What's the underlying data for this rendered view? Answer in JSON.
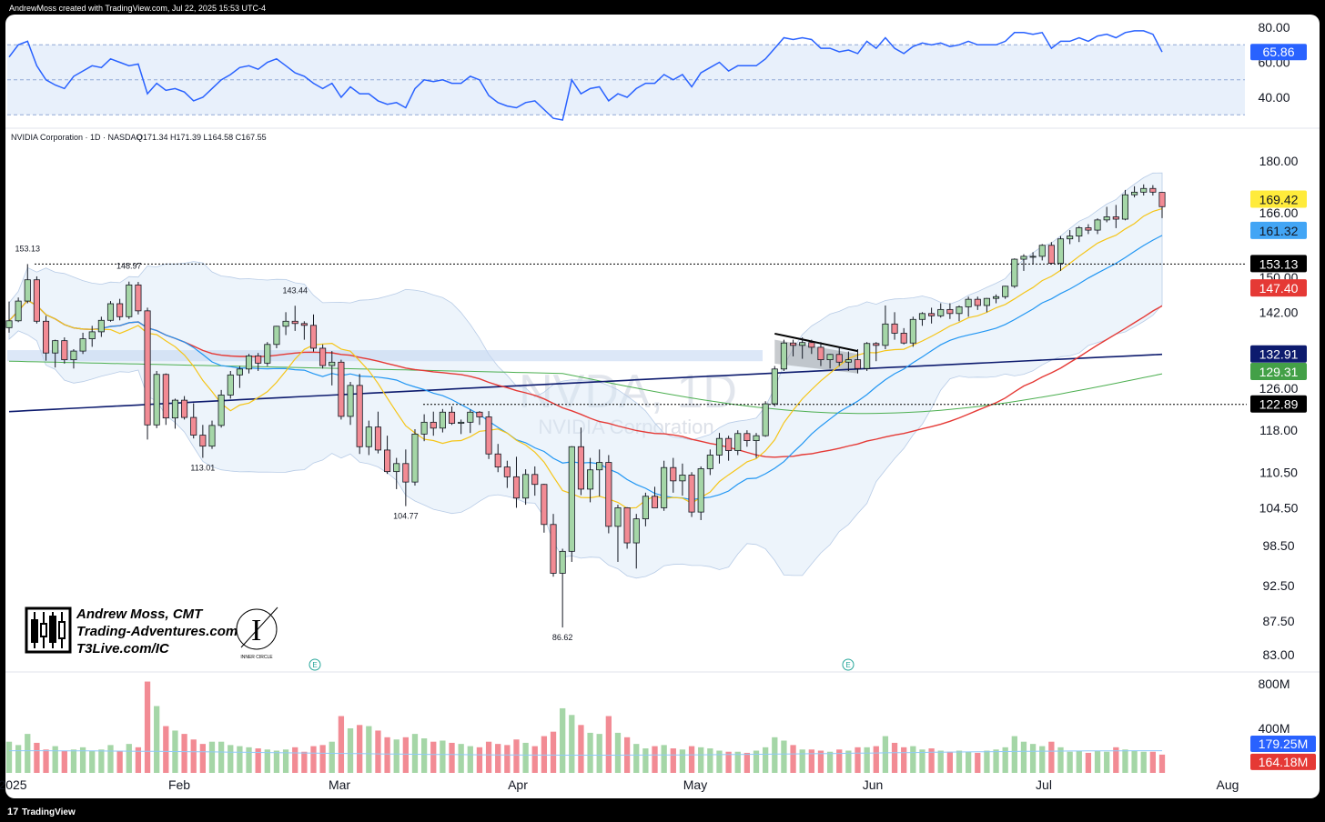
{
  "header": {
    "credit": "AndrewMoss created with TradingView.com, Jul 22, 2025 15:53 UTC-4",
    "symbol_line": "NVIDIA Corporation · 1D · NASDAQ",
    "ohlc": {
      "O": "171.34",
      "H": "171.39",
      "L": "164.58",
      "C": "167.55"
    },
    "ohlc_text": "O171.34  H171.39  L164.58  C167.55"
  },
  "watermark": {
    "ticker": "NVDA, 1D",
    "name": "NVIDIA Corporation"
  },
  "branding": {
    "line1": "Andrew Moss, CMT",
    "line2": "Trading-Adventures.com",
    "line3": "T3Live.com/IC",
    "seal_text": "INNER CIRCLE",
    "footer": "TradingView"
  },
  "colors": {
    "background": "#ffffff",
    "up": "#a5d6a7",
    "down": "#f28b94",
    "candle_outline": "#131722",
    "rsi": "#2962ff",
    "ma_fast": "#f5c518",
    "ma_20": "#2196f3",
    "ma_50": "#e53935",
    "ma_100": "#4caf50",
    "ma_200": "#0d1b6e",
    "bb_fill": "#d6e6f7"
  },
  "price_axis": [
    "180.00",
    "166.00",
    "150.00",
    "142.00",
    "126.00",
    "118.00",
    "110.50",
    "104.50",
    "98.50",
    "92.50",
    "87.50",
    "83.00"
  ],
  "rsi_axis": [
    "80.00",
    "60.00",
    "40.00"
  ],
  "volume_axis": [
    "800M",
    "400M"
  ],
  "months": [
    "2025",
    "Feb",
    "Mar",
    "Apr",
    "May",
    "Jun",
    "Jul",
    "Aug"
  ],
  "price_badges": [
    {
      "label": "169.42",
      "bg": "#ffeb3b",
      "fg": "#131722"
    },
    {
      "label": "161.32",
      "bg": "#42a5f5",
      "fg": "#131722"
    },
    {
      "label": "153.13",
      "bg": "#000000",
      "fg": "#ffffff"
    },
    {
      "label": "147.40",
      "bg": "#e53935",
      "fg": "#ffffff"
    },
    {
      "label": "132.91",
      "bg": "#0d1b6e",
      "fg": "#ffffff"
    },
    {
      "label": "129.31",
      "bg": "#43a047",
      "fg": "#ffffff"
    },
    {
      "label": "122.89",
      "bg": "#000000",
      "fg": "#ffffff"
    }
  ],
  "rsi_badge": {
    "label": "65.86",
    "bg": "#2962ff",
    "fg": "#ffffff"
  },
  "volume_badges": [
    {
      "label": "179.25M",
      "bg": "#2962ff",
      "fg": "#ffffff"
    },
    {
      "label": "164.18M",
      "bg": "#e53935",
      "fg": "#ffffff"
    }
  ],
  "price_annotations": [
    {
      "label": "153.13"
    },
    {
      "label": "148.97"
    },
    {
      "label": "143.44"
    },
    {
      "label": "113.01"
    },
    {
      "label": "104.77"
    },
    {
      "label": "86.62"
    }
  ],
  "chart_data": {
    "type": "candlestick",
    "ticker": "NVDA",
    "interval": "1D",
    "exchange": "NASDAQ",
    "start_date": "2025-01-02",
    "candles": [
      [
        138.6,
        144.4,
        137.5,
        140.1
      ],
      [
        140.1,
        145.3,
        139.8,
        144.5
      ],
      [
        144.5,
        153.13,
        144.0,
        149.4
      ],
      [
        149.4,
        150.2,
        139.5,
        140.0
      ],
      [
        140.0,
        141.2,
        131.6,
        133.2
      ],
      [
        133.2,
        136.0,
        130.2,
        135.8
      ],
      [
        135.8,
        136.5,
        131.0,
        131.8
      ],
      [
        131.8,
        134.0,
        130.0,
        133.6
      ],
      [
        133.6,
        137.5,
        133.0,
        136.2
      ],
      [
        136.2,
        139.0,
        134.5,
        137.7
      ],
      [
        137.7,
        141.0,
        136.6,
        140.2
      ],
      [
        140.2,
        144.5,
        139.9,
        143.9
      ],
      [
        143.9,
        145.0,
        140.2,
        141.0
      ],
      [
        141.0,
        148.97,
        140.5,
        148.2
      ],
      [
        148.2,
        148.9,
        141.5,
        142.3
      ],
      [
        142.3,
        143.0,
        116.3,
        119.0
      ],
      [
        119.0,
        129.5,
        118.4,
        128.8
      ],
      [
        128.8,
        129.0,
        119.0,
        120.3
      ],
      [
        120.3,
        124.0,
        118.3,
        123.7
      ],
      [
        123.7,
        124.5,
        120.0,
        120.4
      ],
      [
        120.4,
        123.1,
        116.5,
        117.1
      ],
      [
        117.1,
        119.0,
        113.01,
        115.1
      ],
      [
        115.1,
        119.8,
        114.6,
        118.9
      ],
      [
        118.9,
        125.7,
        118.5,
        124.7
      ],
      [
        124.7,
        129.5,
        124.0,
        128.7
      ],
      [
        128.7,
        130.5,
        126.1,
        129.9
      ],
      [
        129.9,
        133.0,
        129.0,
        132.6
      ],
      [
        132.6,
        133.2,
        129.5,
        131.1
      ],
      [
        131.1,
        135.5,
        130.5,
        135.0
      ],
      [
        135.0,
        139.0,
        134.2,
        138.9
      ],
      [
        138.9,
        142.0,
        137.0,
        140.0
      ],
      [
        140.0,
        143.44,
        137.9,
        139.5
      ],
      [
        139.5,
        140.0,
        136.0,
        139.1
      ],
      [
        139.1,
        141.5,
        133.5,
        134.2
      ],
      [
        134.2,
        135.0,
        130.0,
        130.6
      ],
      [
        130.6,
        133.6,
        126.6,
        131.3
      ],
      [
        131.3,
        131.8,
        120.0,
        120.6
      ],
      [
        120.6,
        127.3,
        119.0,
        126.6
      ],
      [
        126.6,
        128.9,
        113.7,
        115.0
      ],
      [
        115.0,
        119.8,
        113.5,
        118.6
      ],
      [
        118.6,
        121.5,
        113.8,
        114.4
      ],
      [
        114.4,
        117.0,
        110.2,
        110.6
      ],
      [
        110.6,
        113.0,
        107.6,
        112.0
      ],
      [
        112.0,
        114.5,
        104.77,
        108.8
      ],
      [
        108.8,
        118.2,
        108.2,
        117.3
      ],
      [
        117.3,
        121.0,
        116.0,
        119.5
      ],
      [
        119.5,
        121.5,
        117.0,
        118.4
      ],
      [
        118.4,
        122.0,
        117.6,
        121.4
      ],
      [
        121.4,
        122.5,
        119.0,
        119.3
      ],
      [
        119.3,
        120.0,
        117.3,
        119.5
      ],
      [
        119.5,
        121.9,
        117.5,
        121.4
      ],
      [
        121.4,
        121.6,
        119.0,
        120.5
      ],
      [
        120.5,
        121.6,
        112.8,
        113.7
      ],
      [
        113.7,
        115.5,
        110.5,
        111.4
      ],
      [
        111.4,
        112.5,
        107.8,
        109.7
      ],
      [
        109.7,
        113.2,
        104.5,
        106.1
      ],
      [
        106.1,
        111.0,
        105.0,
        110.1
      ],
      [
        110.1,
        111.5,
        106.5,
        108.4
      ],
      [
        108.4,
        108.5,
        100.5,
        101.8
      ],
      [
        101.8,
        103.5,
        93.8,
        94.3
      ],
      [
        94.3,
        98.0,
        86.62,
        97.6
      ],
      [
        97.6,
        115.1,
        96.0,
        115.0
      ],
      [
        115.0,
        118.5,
        106.6,
        107.6
      ],
      [
        107.6,
        113.0,
        105.4,
        110.9
      ],
      [
        110.9,
        114.5,
        106.4,
        112.2
      ],
      [
        112.2,
        113.5,
        100.4,
        101.5
      ],
      [
        101.5,
        105.0,
        96.0,
        104.5
      ],
      [
        104.5,
        104.6,
        98.0,
        98.9
      ],
      [
        98.9,
        103.5,
        95.0,
        102.7
      ],
      [
        102.7,
        107.0,
        101.5,
        106.4
      ],
      [
        106.4,
        108.0,
        104.5,
        104.5
      ],
      [
        104.5,
        112.5,
        104.0,
        111.3
      ],
      [
        111.3,
        113.0,
        107.0,
        109.0
      ],
      [
        109.0,
        112.0,
        106.5,
        110.0
      ],
      [
        110.0,
        110.5,
        103.0,
        103.8
      ],
      [
        103.8,
        111.5,
        102.5,
        111.1
      ],
      [
        111.1,
        114.5,
        110.0,
        113.5
      ],
      [
        113.5,
        117.5,
        112.0,
        116.5
      ],
      [
        116.5,
        117.0,
        112.5,
        114.3
      ],
      [
        114.3,
        118.0,
        113.5,
        117.4
      ],
      [
        117.4,
        118.0,
        115.0,
        116.1
      ],
      [
        116.1,
        117.5,
        113.0,
        117.0
      ],
      [
        117.0,
        123.5,
        116.8,
        123.0
      ],
      [
        123.0,
        130.5,
        122.5,
        129.9
      ],
      [
        129.9,
        136.0,
        129.5,
        135.3
      ],
      [
        135.3,
        136.0,
        132.5,
        134.8
      ],
      [
        134.8,
        136.5,
        132.0,
        135.4
      ],
      [
        135.4,
        136.0,
        133.0,
        134.4
      ],
      [
        134.4,
        135.5,
        130.5,
        131.8
      ],
      [
        131.8,
        133.0,
        130.0,
        132.9
      ],
      [
        132.9,
        134.5,
        130.5,
        131.3
      ],
      [
        131.3,
        133.5,
        129.5,
        131.8
      ],
      [
        131.8,
        134.0,
        129.0,
        130.0
      ],
      [
        130.0,
        135.5,
        129.5,
        135.2
      ],
      [
        135.2,
        135.5,
        131.5,
        134.8
      ],
      [
        134.8,
        143.5,
        134.0,
        139.4
      ],
      [
        139.4,
        142.0,
        136.0,
        137.4
      ],
      [
        137.4,
        138.5,
        135.0,
        135.3
      ],
      [
        135.3,
        141.0,
        134.5,
        140.4
      ],
      [
        140.4,
        142.0,
        139.0,
        141.7
      ],
      [
        141.7,
        143.0,
        139.5,
        141.2
      ],
      [
        141.2,
        144.0,
        140.8,
        142.6
      ],
      [
        142.6,
        144.0,
        140.5,
        141.7
      ],
      [
        141.7,
        143.5,
        140.0,
        143.2
      ],
      [
        143.2,
        145.5,
        141.0,
        144.9
      ],
      [
        144.9,
        145.5,
        142.5,
        143.5
      ],
      [
        143.5,
        145.2,
        142.0,
        145.1
      ],
      [
        145.1,
        146.0,
        144.0,
        145.5
      ],
      [
        145.5,
        148.0,
        145.0,
        147.9
      ],
      [
        147.9,
        154.5,
        147.5,
        154.3
      ],
      [
        154.3,
        155.5,
        151.5,
        155.0
      ],
      [
        155.0,
        156.0,
        153.0,
        155.0
      ],
      [
        155.0,
        158.0,
        154.0,
        157.7
      ],
      [
        157.7,
        158.5,
        153.0,
        153.3
      ],
      [
        153.3,
        160.0,
        151.5,
        159.3
      ],
      [
        159.3,
        161.5,
        158.0,
        160.0
      ],
      [
        160.0,
        162.5,
        158.5,
        162.1
      ],
      [
        162.1,
        163.0,
        160.5,
        161.5
      ],
      [
        161.5,
        164.5,
        160.5,
        164.1
      ],
      [
        164.1,
        167.5,
        163.5,
        164.9
      ],
      [
        164.9,
        168.0,
        162.0,
        164.3
      ],
      [
        164.3,
        172.0,
        164.0,
        170.7
      ],
      [
        170.7,
        173.0,
        170.0,
        171.4
      ],
      [
        171.4,
        173.5,
        170.5,
        172.4
      ],
      [
        172.4,
        173.3,
        170.5,
        171.4
      ],
      [
        171.34,
        171.39,
        164.58,
        167.55
      ]
    ],
    "volume_m": [
      280,
      250,
      350,
      270,
      210,
      240,
      200,
      210,
      230,
      200,
      210,
      250,
      200,
      260,
      230,
      820,
      600,
      420,
      380,
      350,
      300,
      260,
      280,
      280,
      250,
      240,
      230,
      220,
      210,
      200,
      210,
      230,
      190,
      240,
      250,
      280,
      510,
      400,
      430,
      420,
      380,
      320,
      300,
      320,
      350,
      310,
      280,
      290,
      270,
      260,
      240,
      230,
      280,
      260,
      250,
      300,
      270,
      240,
      330,
      370,
      580,
      520,
      430,
      360,
      350,
      510,
      360,
      320,
      260,
      220,
      240,
      250,
      220,
      210,
      240,
      230,
      220,
      200,
      190,
      190,
      180,
      200,
      230,
      320,
      290,
      250,
      210,
      210,
      200,
      190,
      210,
      200,
      230,
      230,
      240,
      330,
      270,
      230,
      240,
      210,
      220,
      200,
      190,
      200,
      190,
      180,
      200,
      210,
      230,
      330,
      280,
      260,
      240,
      280,
      230,
      190,
      200,
      180,
      200,
      190,
      230,
      210,
      200,
      190,
      190,
      164.18
    ],
    "rsi": [
      63,
      70,
      72,
      58,
      50,
      47,
      45,
      52,
      55,
      58,
      57,
      62,
      60,
      58,
      59,
      42,
      48,
      44,
      45,
      43,
      38,
      40,
      45,
      50,
      53,
      57,
      58,
      56,
      60,
      62,
      58,
      54,
      52,
      48,
      45,
      48,
      40,
      46,
      42,
      42,
      38,
      36,
      37,
      34,
      45,
      50,
      49,
      50,
      48,
      48,
      52,
      50,
      41,
      37,
      35,
      34,
      37,
      38,
      33,
      28,
      27,
      50,
      42,
      45,
      46,
      38,
      42,
      40,
      45,
      48,
      48,
      53,
      50,
      53,
      46,
      54,
      57,
      60,
      55,
      58,
      58,
      58,
      62,
      68,
      74,
      73,
      74,
      73,
      68,
      68,
      66,
      67,
      65,
      72,
      68,
      74,
      68,
      65,
      69,
      71,
      70,
      71,
      69,
      70,
      72,
      70,
      70,
      70,
      72,
      77,
      77,
      76,
      77,
      68,
      72,
      72,
      74,
      72,
      75,
      76,
      74,
      77,
      78,
      78,
      76,
      65.86
    ],
    "ma_current": {
      "ma_10": 169.42,
      "ma_20": 161.32,
      "ma_50": 147.4,
      "ma_100": 129.31,
      "ma_200": 132.91
    },
    "horizontal_levels": [
      153.13,
      122.89
    ],
    "volume_ma_m": 179.25,
    "last_volume_m": 164.18,
    "rsi_last": 65.86,
    "rsi_levels": [
      70,
      50,
      30
    ],
    "price_ylim": [
      82,
      185
    ],
    "rsi_ylim": [
      25,
      85
    ],
    "volume_ylim": [
      0,
      900
    ]
  }
}
